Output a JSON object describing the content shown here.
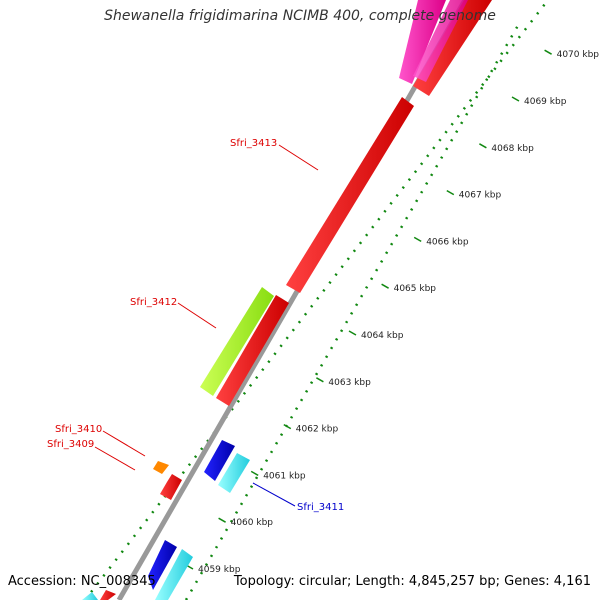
{
  "map": {
    "title": "Shewanella frigidimarina NCIMB 400, complete genome",
    "accession": "Accession: NC_008345",
    "summary": "Topology: circular; Length: 4,845,257 bp; Genes: 4,161"
  },
  "colors": {
    "forward_strand_gene": "#ff0000",
    "rna_gene": "#99ee22",
    "other_gene": "#ff8800",
    "reverse_blue": "#0000ee",
    "reverse_cyan": "#22ddee",
    "magenta_gene": "#ee1199",
    "backbone": "#888888",
    "tick_marks": "#118811"
  },
  "ticks": [
    {
      "label": "4059 kbp"
    },
    {
      "label": "4060 kbp"
    },
    {
      "label": "4061 kbp"
    },
    {
      "label": "4062 kbp"
    },
    {
      "label": "4063 kbp"
    },
    {
      "label": "4064 kbp"
    },
    {
      "label": "4065 kbp"
    },
    {
      "label": "4066 kbp"
    },
    {
      "label": "4067 kbp"
    },
    {
      "label": "4068 kbp"
    },
    {
      "label": "4069 kbp"
    },
    {
      "label": "4070 kbp"
    }
  ],
  "gene_labels": [
    {
      "text": "Sfri_3413",
      "color": "#dd0000"
    },
    {
      "text": "Sfri_3412",
      "color": "#dd0000"
    },
    {
      "text": "Sfri_3410",
      "color": "#dd0000"
    },
    {
      "text": "Sfri_3409",
      "color": "#dd0000"
    },
    {
      "text": "Sfri_3411",
      "color": "#0000cc"
    }
  ]
}
